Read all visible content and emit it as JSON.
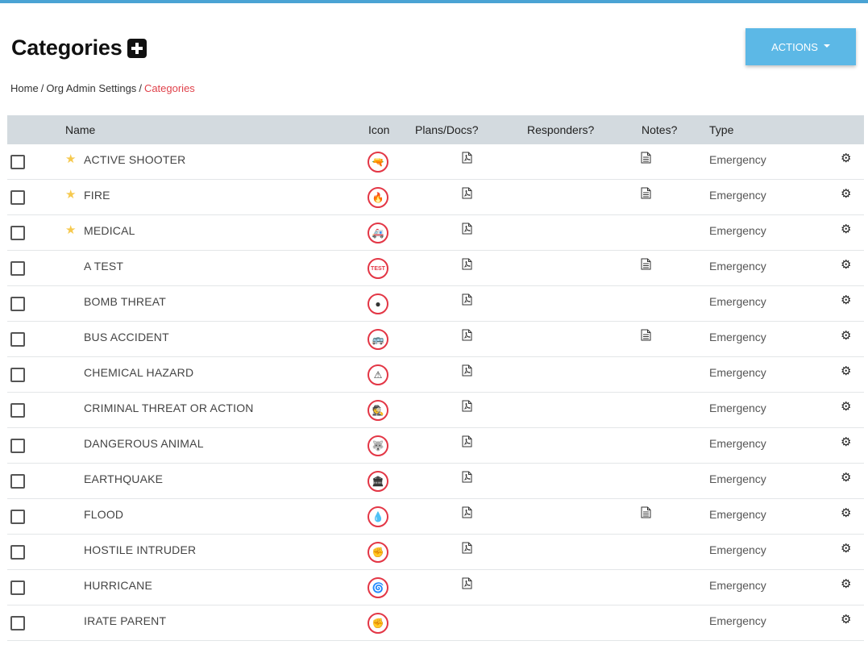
{
  "page": {
    "title": "Categories",
    "actions_label": "ACTIONS",
    "breadcrumb": {
      "home": "Home",
      "org": "Org Admin Settings",
      "current": "Categories",
      "separator": "/"
    }
  },
  "table": {
    "headers": {
      "name": "Name",
      "icon": "Icon",
      "plans": "Plans/Docs?",
      "responders": "Responders?",
      "notes": "Notes?",
      "type": "Type"
    },
    "rows": [
      {
        "name": "ACTIVE SHOOTER",
        "starred": true,
        "icon": "gun-icon",
        "glyph": "🔫",
        "plans": true,
        "notes": true,
        "type": "Emergency"
      },
      {
        "name": "FIRE",
        "starred": true,
        "icon": "fire-icon",
        "glyph": "🔥",
        "plans": true,
        "notes": true,
        "type": "Emergency"
      },
      {
        "name": "MEDICAL",
        "starred": true,
        "icon": "ambulance-icon",
        "glyph": "🚑",
        "plans": true,
        "notes": false,
        "type": "Emergency"
      },
      {
        "name": "A TEST",
        "starred": false,
        "icon": "test-icon",
        "glyph": "TEST",
        "plans": true,
        "notes": true,
        "type": "Emergency"
      },
      {
        "name": "BOMB THREAT",
        "starred": false,
        "icon": "bomb-icon",
        "glyph": "●",
        "plans": true,
        "notes": false,
        "type": "Emergency"
      },
      {
        "name": "BUS ACCIDENT",
        "starred": false,
        "icon": "bus-icon",
        "glyph": "🚌",
        "plans": true,
        "notes": true,
        "type": "Emergency"
      },
      {
        "name": "CHEMICAL HAZARD",
        "starred": false,
        "icon": "warning-icon",
        "glyph": "⚠",
        "plans": true,
        "notes": false,
        "type": "Emergency"
      },
      {
        "name": "CRIMINAL THREAT OR ACTION",
        "starred": false,
        "icon": "criminal-icon",
        "glyph": "🕵",
        "plans": true,
        "notes": false,
        "type": "Emergency"
      },
      {
        "name": "DANGEROUS ANIMAL",
        "starred": false,
        "icon": "wolf-icon",
        "glyph": "🐺",
        "plans": true,
        "notes": false,
        "type": "Emergency"
      },
      {
        "name": "EARTHQUAKE",
        "starred": false,
        "icon": "building-icon",
        "glyph": "🏛",
        "plans": true,
        "notes": false,
        "type": "Emergency"
      },
      {
        "name": "FLOOD",
        "starred": false,
        "icon": "water-drop-icon",
        "glyph": "💧",
        "plans": true,
        "notes": true,
        "type": "Emergency"
      },
      {
        "name": "HOSTILE INTRUDER",
        "starred": false,
        "icon": "fist-icon",
        "glyph": "✊",
        "plans": true,
        "notes": false,
        "type": "Emergency"
      },
      {
        "name": "HURRICANE",
        "starred": false,
        "icon": "hurricane-icon",
        "glyph": "🌀",
        "plans": true,
        "notes": false,
        "type": "Emergency"
      },
      {
        "name": "IRATE PARENT",
        "starred": false,
        "icon": "fist-icon",
        "glyph": "✊",
        "plans": false,
        "notes": false,
        "type": "Emergency"
      }
    ]
  },
  "colors": {
    "accent": "#5cb8e6",
    "breadcrumb_current": "#e0424b",
    "icon_ring": "#e33645",
    "star": "#f6c94e",
    "header_bg": "#d3dadf"
  }
}
